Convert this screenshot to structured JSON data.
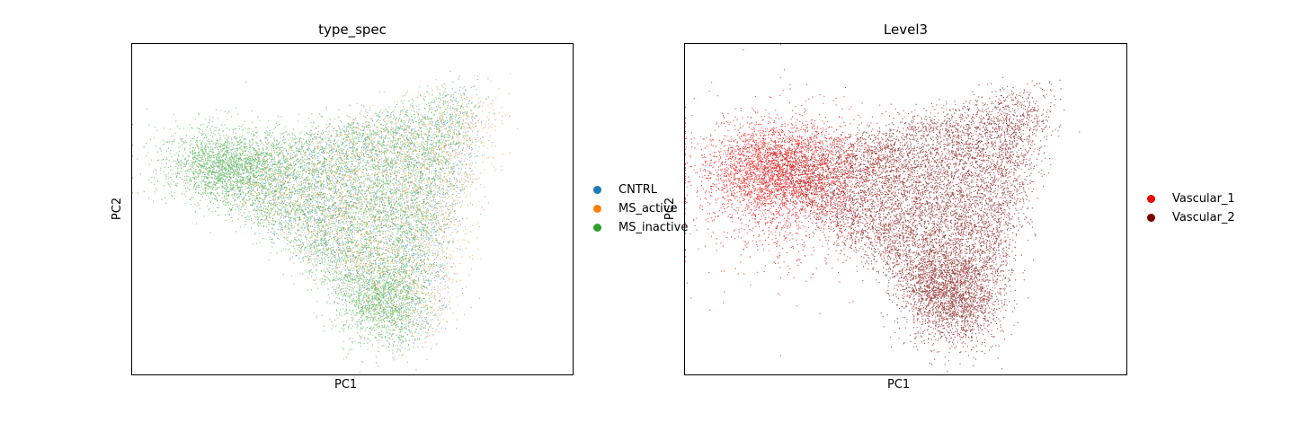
{
  "chart_data": [
    {
      "type": "scatter",
      "title": "type_spec",
      "xlabel": "PC1",
      "ylabel": "PC2",
      "grid": false,
      "ticks": false,
      "legend_position": "right",
      "series": [
        {
          "name": "CNTRL",
          "color": "#1f77b4"
        },
        {
          "name": "MS_active",
          "color": "#ff7f0e"
        },
        {
          "name": "MS_inactive",
          "color": "#2ca02c"
        }
      ]
    },
    {
      "type": "scatter",
      "title": "Level3",
      "xlabel": "PC1",
      "ylabel": "PC2",
      "grid": false,
      "ticks": false,
      "legend_position": "right",
      "series": [
        {
          "name": "Vascular_1",
          "color": "#ee0000"
        },
        {
          "name": "Vascular_2",
          "color": "#7a0000"
        }
      ]
    }
  ]
}
